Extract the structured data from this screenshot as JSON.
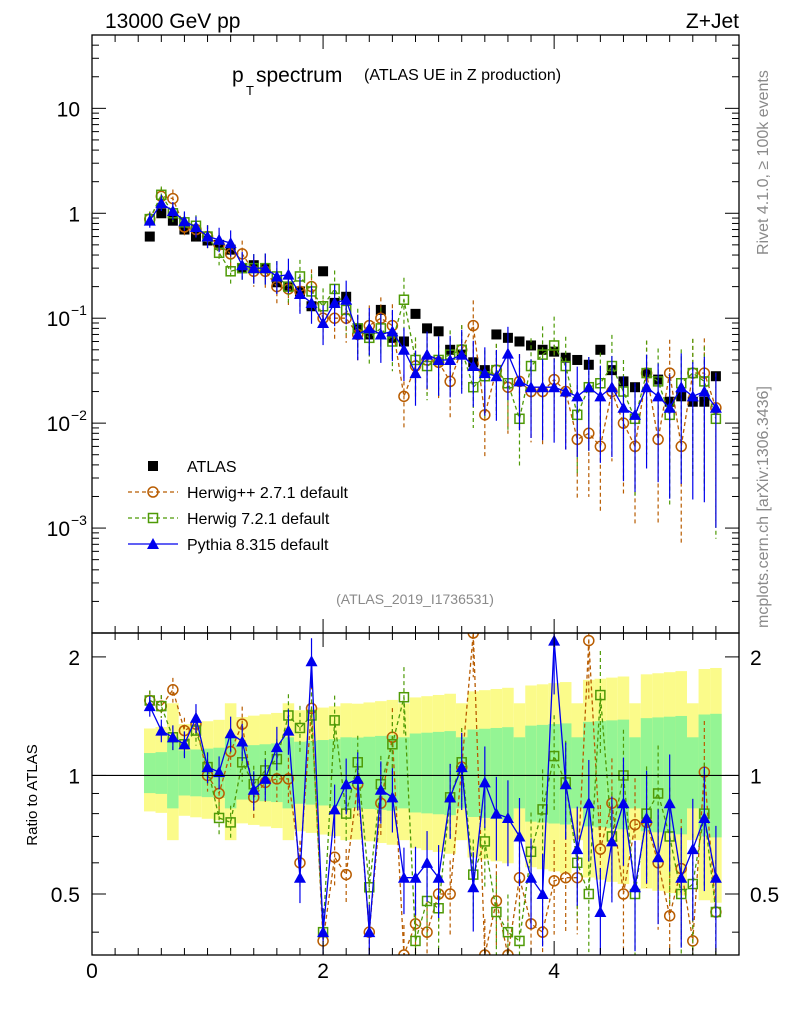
{
  "header": {
    "energy_label": "13000 GeV pp",
    "process_label": "Z+Jet"
  },
  "side": {
    "rivet_label": "Rivet 4.1.0, ≥ 100k events",
    "mcplots_label": "mcplots.cern.ch [arXiv:1306.3436]"
  },
  "chart_data": {
    "type": "scatter",
    "title_main": "p",
    "title_sub": "T",
    "title_rest": " spectrum",
    "title_note": "(ATLAS UE in Z production)",
    "analysis_id": "(ATLAS_2019_I1736531)",
    "xlim": [
      0,
      5.6
    ],
    "ylim": [
      0.0001,
      50
    ],
    "yscale": "log",
    "x_ticks": [
      0,
      2,
      4
    ],
    "y_tick_labels": [
      {
        "v": 10,
        "label": "10"
      },
      {
        "v": 1,
        "label": "1"
      },
      {
        "v": 0.1,
        "label": "10",
        "exp": "−1"
      },
      {
        "v": 0.01,
        "label": "10",
        "exp": "−2"
      },
      {
        "v": 0.001,
        "label": "10",
        "exp": "−3"
      }
    ],
    "ratio_ylabel": "Ratio to ATLAS",
    "ratio_ylim": [
      0.35,
      2.3
    ],
    "ratio_ticks": [
      {
        "v": 2,
        "label": "2"
      },
      {
        "v": 1,
        "label": "1"
      },
      {
        "v": 0.5,
        "label": "0.5"
      }
    ],
    "x": [
      0.5,
      0.6,
      0.7,
      0.8,
      0.9,
      1.0,
      1.1,
      1.2,
      1.3,
      1.4,
      1.5,
      1.6,
      1.7,
      1.8,
      1.9,
      2.0,
      2.1,
      2.2,
      2.3,
      2.4,
      2.5,
      2.6,
      2.7,
      2.8,
      2.9,
      3.0,
      3.1,
      3.2,
      3.3,
      3.4,
      3.5,
      3.6,
      3.7,
      3.8,
      3.9,
      4.0,
      4.1,
      4.2,
      4.3,
      4.4,
      4.5,
      4.6,
      4.7,
      4.8,
      4.9,
      5.0,
      5.1,
      5.2,
      5.3,
      5.4
    ],
    "legend_position": "middle-left",
    "series": [
      {
        "name": "ATLAS",
        "marker": "square-filled",
        "color": "#000000",
        "values": [
          0.6,
          1.0,
          0.85,
          0.7,
          0.6,
          0.55,
          0.5,
          0.45,
          0.3,
          0.32,
          0.3,
          0.22,
          0.2,
          0.18,
          0.13,
          0.28,
          0.14,
          0.16,
          0.08,
          0.07,
          0.12,
          0.065,
          0.06,
          0.11,
          0.08,
          0.075,
          0.05,
          0.045,
          0.038,
          0.032,
          0.07,
          0.065,
          0.06,
          0.055,
          0.05,
          0.048,
          0.042,
          0.04,
          0.036,
          0.05,
          0.032,
          0.025,
          0.022,
          0.03,
          0.026,
          0.016,
          0.018,
          0.016,
          0.016,
          0.028
        ]
      },
      {
        "name": "Herwig++ 2.7.1 default",
        "marker": "circle-open",
        "color": "#b85c00",
        "values": [
          0.88,
          1.45,
          1.38,
          0.74,
          0.7,
          0.6,
          0.5,
          0.41,
          0.41,
          0.28,
          0.28,
          0.2,
          0.19,
          0.18,
          0.2,
          0.1,
          0.1,
          0.1,
          0.07,
          0.085,
          0.1,
          0.085,
          0.018,
          0.035,
          0.04,
          0.038,
          0.025,
          0.05,
          0.085,
          0.012,
          0.032,
          0.022,
          0.025,
          0.02,
          0.02,
          0.026,
          0.02,
          0.007,
          0.008,
          0.006,
          0.02,
          0.01,
          0.006,
          0.03,
          0.007,
          0.03,
          0.006,
          0.03,
          0.03,
          0.014
        ]
      },
      {
        "name": "Herwig 7.2.1 default",
        "marker": "square-open",
        "color": "#4e9a06",
        "values": [
          0.88,
          1.5,
          1.0,
          0.82,
          0.76,
          0.6,
          0.42,
          0.28,
          0.3,
          0.3,
          0.3,
          0.25,
          0.2,
          0.25,
          0.18,
          0.13,
          0.19,
          0.12,
          0.08,
          0.065,
          0.08,
          0.06,
          0.15,
          0.04,
          0.035,
          0.04,
          0.045,
          0.05,
          0.022,
          0.028,
          0.032,
          0.024,
          0.011,
          0.035,
          0.045,
          0.055,
          0.035,
          0.012,
          0.022,
          0.024,
          0.035,
          0.02,
          0.011,
          0.03,
          0.025,
          0.012,
          0.024,
          0.03,
          0.025,
          0.011
        ]
      },
      {
        "name": "Pythia 8.315 default",
        "marker": "triangle-filled",
        "color": "#0000ee",
        "values": [
          0.85,
          1.25,
          1.05,
          0.84,
          0.74,
          0.6,
          0.56,
          0.52,
          0.32,
          0.3,
          0.3,
          0.25,
          0.26,
          0.17,
          0.14,
          0.09,
          0.14,
          0.15,
          0.07,
          0.08,
          0.07,
          0.075,
          0.05,
          0.03,
          0.045,
          0.04,
          0.04,
          0.045,
          0.035,
          0.03,
          0.028,
          0.046,
          0.025,
          0.022,
          0.022,
          0.022,
          0.02,
          0.018,
          0.022,
          0.018,
          0.022,
          0.014,
          0.012,
          0.022,
          0.018,
          0.014,
          0.022,
          0.018,
          0.02,
          0.014
        ]
      }
    ],
    "ratio_series": [
      {
        "name": "Herwig++ 2.7.1 default",
        "values": [
          1.55,
          1.5,
          1.65,
          1.3,
          1.35,
          1.0,
          0.9,
          1.15,
          1.35,
          0.88,
          0.96,
          0.98,
          0.98,
          0.6,
          1.48,
          0.38,
          0.62,
          0.56,
          0.95,
          0.4,
          0.85,
          1.25,
          0.35,
          0.42,
          0.4,
          0.5,
          0.5,
          1.05,
          2.3,
          0.35,
          0.48,
          0.35,
          0.55,
          0.42,
          0.4,
          0.54,
          0.55,
          0.55,
          2.2,
          0.65,
          0.85,
          0.5,
          0.75,
          0.76,
          0.6,
          0.44,
          0.58,
          0.38,
          1.02,
          0.45
        ]
      },
      {
        "name": "Herwig 7.2.1 default",
        "values": [
          1.55,
          1.5,
          1.25,
          1.2,
          1.3,
          1.05,
          0.78,
          0.76,
          1.08,
          0.95,
          1.03,
          1.1,
          1.42,
          1.32,
          1.42,
          0.4,
          1.38,
          0.8,
          1.08,
          0.52,
          0.95,
          1.2,
          1.58,
          0.38,
          0.48,
          0.46,
          0.88,
          1.08,
          0.56,
          0.68,
          0.45,
          0.4,
          0.38,
          0.64,
          0.82,
          1.12,
          0.96,
          0.6,
          0.5,
          1.6,
          0.7,
          1.0,
          0.5,
          0.8,
          0.9,
          0.7,
          0.5,
          0.53,
          0.8,
          0.45
        ]
      },
      {
        "name": "Pythia 8.315 default",
        "values": [
          1.5,
          1.3,
          1.25,
          1.2,
          1.4,
          1.05,
          1.02,
          1.28,
          1.22,
          0.92,
          0.98,
          1.18,
          1.3,
          0.55,
          1.95,
          0.4,
          0.82,
          0.95,
          0.98,
          0.4,
          0.92,
          0.88,
          0.55,
          0.55,
          0.6,
          0.55,
          0.88,
          1.05,
          0.52,
          0.96,
          0.8,
          0.78,
          0.7,
          0.55,
          0.5,
          2.2,
          0.95,
          0.65,
          0.85,
          0.45,
          0.68,
          0.85,
          0.52,
          0.78,
          0.62,
          0.85,
          0.55,
          0.65,
          0.78,
          0.55
        ]
      }
    ]
  }
}
